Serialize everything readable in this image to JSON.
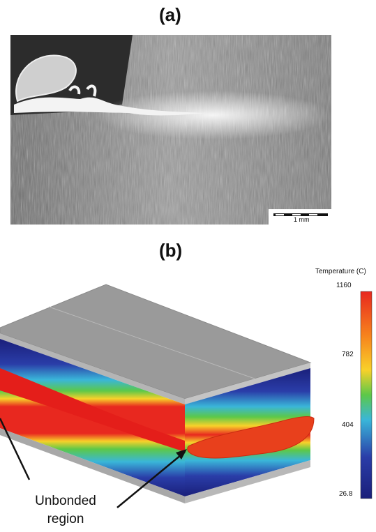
{
  "panel_a": {
    "label": "(a)",
    "scale_bar_label": "1 mm"
  },
  "panel_b": {
    "label": "(b)",
    "colorbar": {
      "title": "Temperature (C)",
      "ticks": [
        "1160",
        "782",
        "404",
        "26.8"
      ],
      "colors": [
        "#e8281f",
        "#f8d12a",
        "#5cc849",
        "#3ab6d9",
        "#2a3da8",
        "#1a1f7a"
      ]
    },
    "annotation": {
      "line1": "Unbonded",
      "line2": "region"
    },
    "colors": {
      "top_face": "#9a9a9a",
      "edge_gray": "#b5b5b5",
      "bond_line": "#e41e1a",
      "deep_blue": "#1c2592"
    }
  }
}
